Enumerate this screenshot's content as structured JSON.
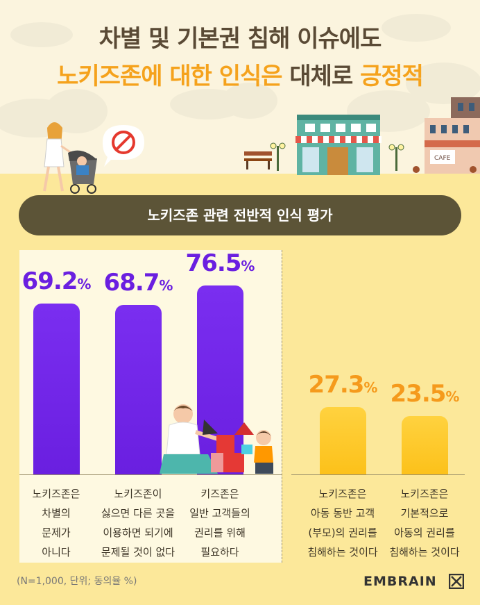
{
  "title": {
    "line1": "차별 및 기본권 침해 이슈에도",
    "line2_part1": "노키즈존에 대한 인식은",
    "line2_part2": " 대체로 ",
    "line2_part3": "긍정적"
  },
  "illustration": {
    "cafe_sign": "CAFE",
    "icons": [
      "prohibited-icon",
      "mother-stroller",
      "cafe-building",
      "bench",
      "street-lamp",
      "parent-child-blocks"
    ]
  },
  "subtitle": "노키즈존 관련 전반적 인식 평가",
  "chart_data": {
    "type": "bar",
    "unit": "%",
    "categories": [
      "노키즈존은 차별의 문제가 아니다",
      "노키즈존이 싫으면 다른 곳을 이용하면 되기에 문제될 것이 없다",
      "키즈존은 일반 고객들의 권리를 위해 필요하다",
      "노키즈존은 아동 동반 고객 (부모)의 권리를 침해하는 것이다",
      "노키즈존은 기본적으로 아동의 권리를 침해하는 것이다"
    ],
    "category_lines": [
      [
        "노키즈존은",
        "차별의",
        "문제가",
        "아니다"
      ],
      [
        "노키즈존이",
        "싫으면 다른 곳을",
        "이용하면 되기에",
        "문제될 것이 없다"
      ],
      [
        "키즈존은",
        "일반 고객들의",
        "권리를 위해",
        "필요하다"
      ],
      [
        "노키즈존은",
        "아동 동반 고객",
        "(부모)의 권리를",
        "침해하는 것이다"
      ],
      [
        "노키즈존은",
        "기본적으로",
        "아동의 권리를",
        "침해하는 것이다"
      ]
    ],
    "values": [
      69.2,
      68.7,
      76.5,
      27.3,
      23.5
    ],
    "value_labels": [
      "69.2",
      "68.7",
      "76.5",
      "27.3",
      "23.5"
    ],
    "groups": [
      "positive",
      "positive",
      "positive",
      "negative",
      "negative"
    ],
    "colors": {
      "positive": "#6a1fe0",
      "negative": "#fcc11a",
      "positive_label": "#6a1fe0",
      "negative_label": "#f59a1c"
    },
    "ylim": [
      0,
      100
    ],
    "grid": false,
    "legend": "none"
  },
  "footnote": "(N=1,000, 단위; 동의율 %)",
  "brand": "EMBRAIN"
}
